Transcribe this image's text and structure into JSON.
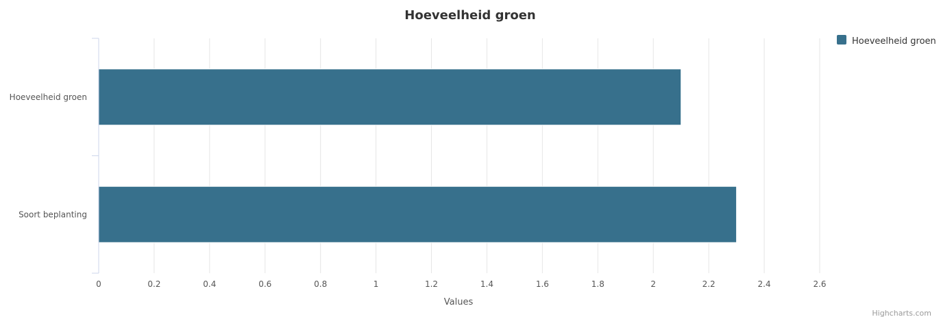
{
  "chart_data": {
    "type": "bar",
    "orientation": "horizontal",
    "title": "Hoeveelheid groen",
    "categories": [
      "Hoeveelheid groen",
      "Soort beplanting"
    ],
    "series": [
      {
        "name": "Hoeveelheid groen",
        "values": [
          2.1,
          2.3
        ],
        "color": "#37708c"
      }
    ],
    "xlabel": "Values",
    "xlim": [
      0,
      2.6
    ],
    "xticks": [
      "0",
      "0.2",
      "0.4",
      "0.6",
      "0.8",
      "1",
      "1.2",
      "1.4",
      "1.6",
      "1.8",
      "2",
      "2.2",
      "2.4",
      "2.6"
    ],
    "grid": true,
    "legend_position": "top-right"
  },
  "credits": "Highcharts.com"
}
